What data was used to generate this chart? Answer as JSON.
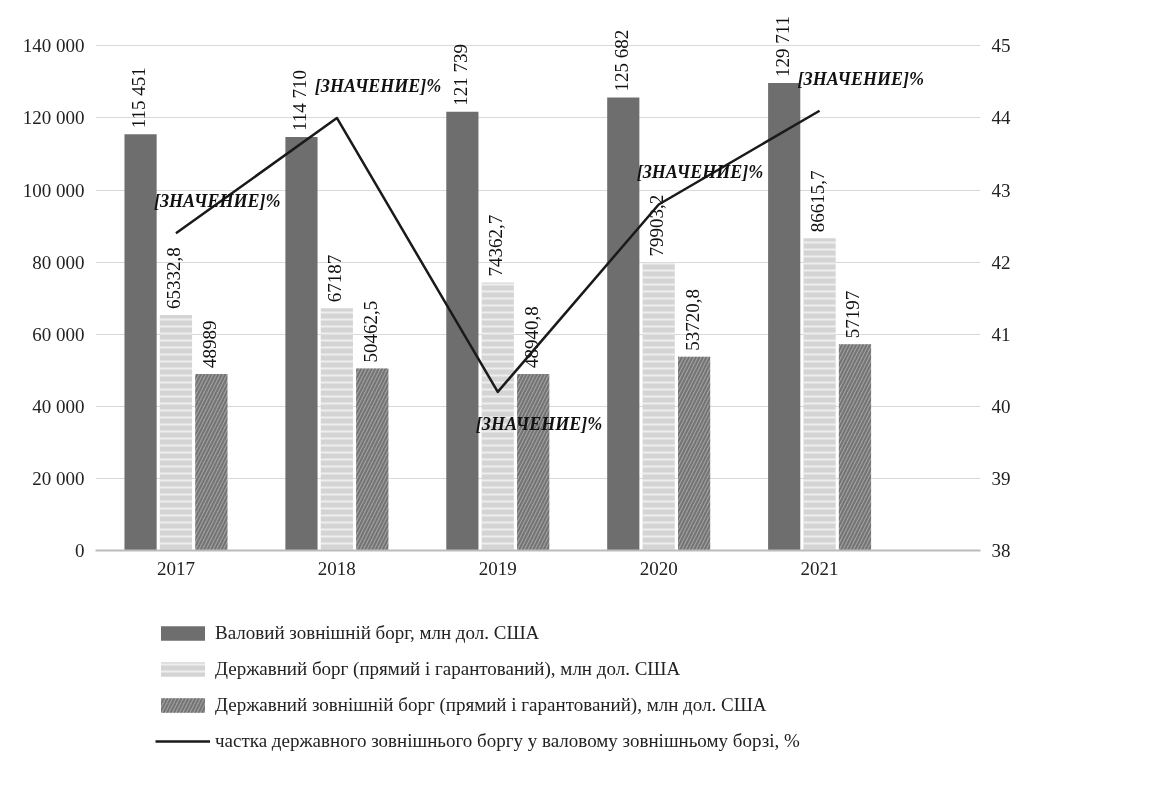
{
  "chart_data": {
    "type": "bar",
    "categories": [
      "2017",
      "2018",
      "2019",
      "2020",
      "2021"
    ],
    "ylim": [
      0,
      140000
    ],
    "yticks": [
      {
        "value": 0,
        "label": "0"
      },
      {
        "value": 20000,
        "label": "20 000"
      },
      {
        "value": 40000,
        "label": "40 000"
      },
      {
        "value": 60000,
        "label": "60 000"
      },
      {
        "value": 80000,
        "label": "80 000"
      },
      {
        "value": 100000,
        "label": "100 000"
      },
      {
        "value": 120000,
        "label": "120 000"
      },
      {
        "value": 140000,
        "label": "140 000"
      }
    ],
    "y2lim": [
      38,
      45
    ],
    "y2ticks": [
      38,
      39,
      40,
      41,
      42,
      43,
      44,
      45
    ],
    "grid": "y",
    "legend": "bottom",
    "series": [
      {
        "name": "Валовий зовнішній борг, млн дол. США",
        "color": "#6e6e6e",
        "values": [
          115451,
          114710,
          121739,
          125682,
          129711
        ],
        "value_labels": [
          "115 451",
          "114 710",
          "121 739",
          "125 682",
          "129 711"
        ]
      },
      {
        "name": "Державний борг (прямий і гарантований), млн дол. США",
        "color": "#d4d4d4",
        "values": [
          65332.8,
          67187,
          74362.7,
          79903.2,
          86615.7
        ],
        "value_labels": [
          "65332,8",
          "67187",
          "74362,7",
          "79903,2",
          "86615,7"
        ]
      },
      {
        "name": "Державний зовнішній борг (прямий і гарантований), млн дол. США",
        "color": "#a0a0a0",
        "values": [
          48989,
          50462.5,
          48940.8,
          53720.8,
          57197
        ],
        "value_labels": [
          "48989",
          "50462,5",
          "48940,8",
          "53720,8",
          "57197"
        ]
      },
      {
        "name": "частка державного зовнішнього боргу у валовому зовнішньому борзі, %",
        "type": "line",
        "axis": "y2",
        "color": "#1a1a1a",
        "values": [
          42.4,
          44.0,
          40.2,
          42.8,
          44.1
        ],
        "value_labels": [
          "[ЗНАЧЕНИЕ]%",
          "[ЗНАЧЕНИЕ]%",
          "[ЗНАЧЕНИЕ]%",
          "[ЗНАЧЕНИЕ]%",
          "[ЗНАЧЕНИЕ]%"
        ]
      }
    ]
  }
}
